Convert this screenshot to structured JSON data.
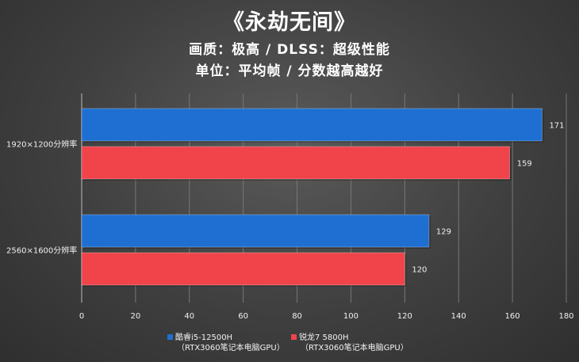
{
  "title": "《永劫无间》",
  "subtitle_quality": "画质：极高 / DLSS：超级性能",
  "subtitle_unit": "单位：平均帧 / 分数越高越好",
  "colors": {
    "series_blue": "#1e6fd1",
    "series_red": "#f0444a"
  },
  "chart_data": {
    "type": "bar",
    "orientation": "horizontal",
    "categories": [
      "1920×1200分辨率",
      "2560×1600分辨率"
    ],
    "series": [
      {
        "name": "酷睿i5-12500H",
        "name_line2": "（RTX3060笔记本电脑GPU）",
        "values": [
          171,
          129
        ]
      },
      {
        "name": "锐龙7 5800H",
        "name_line2": "（RTX3060笔记本电脑GPU）",
        "values": [
          159,
          120
        ]
      }
    ],
    "xlim": [
      0,
      180
    ],
    "xticks": [
      0,
      20,
      40,
      60,
      80,
      100,
      120,
      140,
      160,
      180
    ],
    "grid": true,
    "legend_position": "bottom"
  }
}
